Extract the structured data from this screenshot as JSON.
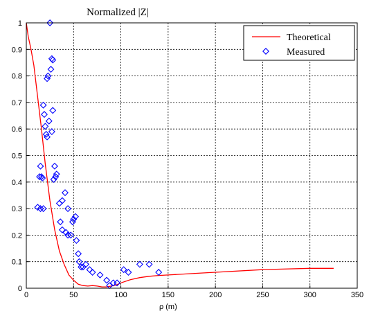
{
  "chart_data": {
    "type": "line",
    "title": "Normalized |Z|",
    "xlabel": "ρ (m)",
    "ylabel": "",
    "xlim": [
      0,
      350
    ],
    "ylim": [
      0,
      1
    ],
    "xticks": [
      "0",
      "50",
      "100",
      "150",
      "200",
      "250",
      "300",
      "350"
    ],
    "yticks": [
      "0",
      "0.1",
      "0.2",
      "0.3",
      "0.4",
      "0.5",
      "0.6",
      "0.7",
      "0.8",
      "0.9",
      "1"
    ],
    "grid": true,
    "legend_position": "top-right",
    "colors": {
      "theoretical": "#ff0000",
      "measured": "#0000ff"
    },
    "series": [
      {
        "name": "Theoretical",
        "style": "line",
        "x": [
          0,
          2,
          5,
          8,
          12,
          16,
          20,
          25,
          30,
          35,
          40,
          45,
          50,
          55,
          60,
          65,
          70,
          75,
          80,
          85,
          90,
          95,
          100,
          110,
          120,
          130,
          140,
          150,
          175,
          200,
          250,
          300,
          325
        ],
        "y": [
          1.0,
          0.95,
          0.9,
          0.84,
          0.72,
          0.6,
          0.47,
          0.33,
          0.22,
          0.14,
          0.09,
          0.05,
          0.03,
          0.015,
          0.01,
          0.008,
          0.01,
          0.008,
          0.005,
          0.005,
          0.008,
          0.012,
          0.02,
          0.032,
          0.04,
          0.045,
          0.048,
          0.05,
          0.055,
          0.06,
          0.07,
          0.075,
          0.075
        ]
      },
      {
        "name": "Measured",
        "style": "scatter",
        "x": [
          25,
          27,
          28,
          26,
          22,
          23,
          18,
          19,
          28,
          24,
          20,
          21,
          22,
          15,
          27,
          30,
          32,
          29,
          31,
          16,
          17,
          14,
          15,
          18,
          12,
          35,
          38,
          41,
          44,
          50,
          52,
          49,
          53,
          36,
          38,
          44,
          47,
          42,
          55,
          56,
          58,
          60,
          63,
          67,
          70,
          78,
          85,
          88,
          92,
          96,
          103,
          108,
          120,
          130,
          140
        ],
        "y": [
          1.0,
          0.865,
          0.86,
          0.825,
          0.79,
          0.8,
          0.69,
          0.655,
          0.67,
          0.63,
          0.61,
          0.58,
          0.57,
          0.46,
          0.59,
          0.46,
          0.43,
          0.41,
          0.42,
          0.42,
          0.415,
          0.42,
          0.3,
          0.3,
          0.305,
          0.32,
          0.33,
          0.36,
          0.3,
          0.26,
          0.27,
          0.25,
          0.18,
          0.25,
          0.22,
          0.2,
          0.2,
          0.21,
          0.13,
          0.1,
          0.08,
          0.08,
          0.09,
          0.07,
          0.06,
          0.05,
          0.03,
          0.01,
          0.02,
          0.02,
          0.07,
          0.06,
          0.09,
          0.09,
          0.06
        ]
      }
    ]
  }
}
